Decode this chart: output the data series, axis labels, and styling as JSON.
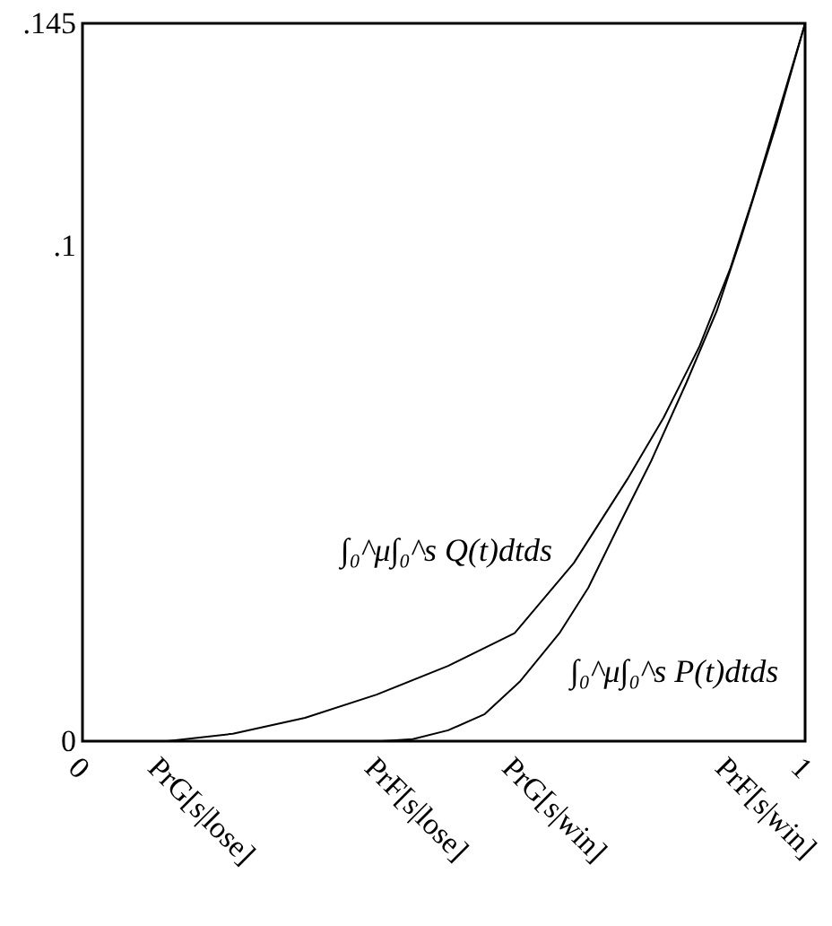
{
  "chart_data": {
    "type": "line",
    "xlim": [
      0,
      1
    ],
    "ylim": [
      0,
      0.145
    ],
    "xticks": [
      0,
      {
        "value": 0.11,
        "label": "PrG[s|lose]"
      },
      {
        "value": 0.41,
        "label": "PrF[s|lose]"
      },
      {
        "value": 0.6,
        "label": "PrG[s|win]"
      },
      {
        "value": 0.895,
        "label": "PrF[s|win]"
      },
      1
    ],
    "yticks": [
      0,
      {
        "value": 0.1,
        "label": ".1"
      },
      {
        "value": 0.145,
        "label": ".145"
      }
    ],
    "grid": false,
    "series": [
      {
        "name": "∫₀^μ∫₀^s Q(t)dtds",
        "color": "#000000",
        "x": [
          0.117,
          0.208,
          0.308,
          0.407,
          0.506,
          0.598,
          0.68,
          0.754,
          0.804,
          0.854,
          0.896,
          0.928,
          0.96,
          1
        ],
        "values": [
          0,
          0.0015,
          0.0047,
          0.0094,
          0.0152,
          0.0218,
          0.036,
          0.0529,
          0.0653,
          0.0798,
          0.0953,
          0.1098,
          0.1254,
          0.145
        ]
      },
      {
        "name": "∫₀^μ∫₀^s P(t)dtds",
        "color": "#000000",
        "x": [
          0.414,
          0.457,
          0.506,
          0.556,
          0.605,
          0.66,
          0.7,
          0.742,
          0.787,
          0.836,
          0.878,
          0.911,
          0.96,
          1
        ],
        "values": [
          0,
          0.0004,
          0.0022,
          0.0054,
          0.012,
          0.0218,
          0.031,
          0.0435,
          0.0566,
          0.0725,
          0.087,
          0.1015,
          0.1245,
          0.145
        ]
      }
    ]
  }
}
